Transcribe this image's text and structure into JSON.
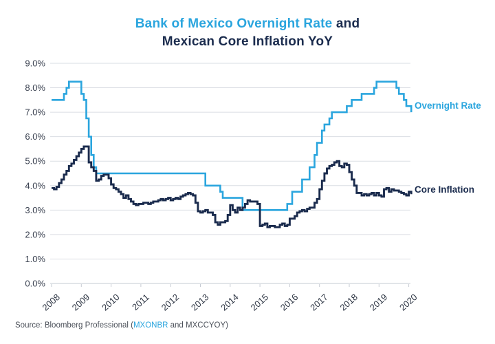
{
  "title": {
    "line1_highlight": "Bank of Mexico Overnight Rate",
    "line1_rest": " and",
    "line2": "Mexican Core Inflation YoY"
  },
  "source": {
    "prefix": "Source: Bloomberg Professional (",
    "ticker_highlight": "MXONBR",
    "suffix": " and MXCCYOY)"
  },
  "colors": {
    "blue": "#2AA5DE",
    "navy": "#1A2B4D",
    "gridline": "#DADDE3",
    "tick": "#C6CBD3",
    "axis_text": "#3A4150",
    "x_text": "#2E3644"
  },
  "chart_data": {
    "type": "line",
    "step": true,
    "title": "Bank of Mexico Overnight Rate and Mexican Core Inflation YoY",
    "xlabel": "",
    "ylabel": "",
    "x_unit": "monthly",
    "x_start_year": 2008,
    "x_end": "2020-02",
    "x_tick_labels": [
      "2008",
      "2009",
      "2010",
      "2011",
      "2012",
      "2013",
      "2014",
      "2015",
      "2016",
      "2017",
      "2018",
      "2019",
      "2020"
    ],
    "y_tick_labels": [
      "0.0%",
      "1.0%",
      "2.0%",
      "3.0%",
      "4.0%",
      "5.0%",
      "6.0%",
      "7.0%",
      "8.0%",
      "9.0%"
    ],
    "ylim": [
      0,
      9
    ],
    "grid": "horizontal",
    "legend_position": "right-inline",
    "series": [
      {
        "id": "overnight-rate",
        "name": "Overnight Rate",
        "color": "#2AA5DE",
        "values": [
          7.5,
          7.5,
          7.5,
          7.5,
          7.5,
          7.75,
          8.0,
          8.25,
          8.25,
          8.25,
          8.25,
          8.25,
          7.75,
          7.5,
          6.75,
          6.0,
          5.25,
          4.75,
          4.5,
          4.5,
          4.5,
          4.5,
          4.5,
          4.5,
          4.5,
          4.5,
          4.5,
          4.5,
          4.5,
          4.5,
          4.5,
          4.5,
          4.5,
          4.5,
          4.5,
          4.5,
          4.5,
          4.5,
          4.5,
          4.5,
          4.5,
          4.5,
          4.5,
          4.5,
          4.5,
          4.5,
          4.5,
          4.5,
          4.5,
          4.5,
          4.5,
          4.5,
          4.5,
          4.5,
          4.5,
          4.5,
          4.5,
          4.5,
          4.5,
          4.5,
          4.5,
          4.5,
          4.0,
          4.0,
          4.0,
          4.0,
          4.0,
          4.0,
          3.75,
          3.5,
          3.5,
          3.5,
          3.5,
          3.5,
          3.5,
          3.5,
          3.5,
          3.0,
          3.0,
          3.0,
          3.0,
          3.0,
          3.0,
          3.0,
          3.0,
          3.0,
          3.0,
          3.0,
          3.0,
          3.0,
          3.0,
          3.0,
          3.0,
          3.0,
          3.0,
          3.25,
          3.25,
          3.75,
          3.75,
          3.75,
          3.75,
          4.25,
          4.25,
          4.25,
          4.75,
          4.75,
          5.25,
          5.75,
          5.75,
          6.25,
          6.5,
          6.5,
          6.75,
          7.0,
          7.0,
          7.0,
          7.0,
          7.0,
          7.0,
          7.25,
          7.25,
          7.5,
          7.5,
          7.5,
          7.5,
          7.75,
          7.75,
          7.75,
          7.75,
          7.75,
          8.0,
          8.25,
          8.25,
          8.25,
          8.25,
          8.25,
          8.25,
          8.25,
          8.25,
          8.0,
          7.75,
          7.75,
          7.5,
          7.25,
          7.25,
          7.0
        ]
      },
      {
        "id": "core-inflation",
        "name": "Core Inflation",
        "color": "#1A2B4D",
        "values": [
          3.9,
          3.85,
          3.95,
          4.1,
          4.25,
          4.45,
          4.6,
          4.8,
          4.9,
          5.05,
          5.2,
          5.35,
          5.5,
          5.6,
          5.6,
          4.95,
          4.75,
          4.6,
          4.2,
          4.25,
          4.4,
          4.45,
          4.45,
          4.3,
          4.05,
          3.9,
          3.85,
          3.75,
          3.65,
          3.5,
          3.6,
          3.45,
          3.35,
          3.25,
          3.2,
          3.25,
          3.25,
          3.3,
          3.3,
          3.25,
          3.3,
          3.35,
          3.35,
          3.4,
          3.45,
          3.4,
          3.45,
          3.5,
          3.4,
          3.45,
          3.5,
          3.45,
          3.55,
          3.6,
          3.65,
          3.7,
          3.65,
          3.6,
          3.3,
          2.95,
          2.9,
          2.95,
          3.0,
          2.9,
          2.9,
          2.8,
          2.5,
          2.4,
          2.5,
          2.5,
          2.55,
          2.8,
          3.2,
          3.0,
          2.9,
          3.1,
          3.0,
          3.1,
          3.25,
          3.4,
          3.35,
          3.35,
          3.35,
          3.25,
          2.35,
          2.4,
          2.45,
          2.3,
          2.35,
          2.35,
          2.3,
          2.3,
          2.4,
          2.45,
          2.35,
          2.4,
          2.65,
          2.65,
          2.75,
          2.9,
          2.95,
          3.0,
          2.95,
          3.05,
          3.1,
          3.1,
          3.3,
          3.45,
          3.85,
          4.2,
          4.5,
          4.7,
          4.8,
          4.85,
          4.95,
          5.0,
          4.8,
          4.75,
          4.9,
          4.85,
          4.55,
          4.25,
          4.0,
          3.7,
          3.7,
          3.6,
          3.65,
          3.6,
          3.65,
          3.7,
          3.6,
          3.7,
          3.6,
          3.55,
          3.85,
          3.9,
          3.75,
          3.85,
          3.8,
          3.8,
          3.75,
          3.7,
          3.65,
          3.6,
          3.75,
          3.65
        ]
      }
    ]
  }
}
